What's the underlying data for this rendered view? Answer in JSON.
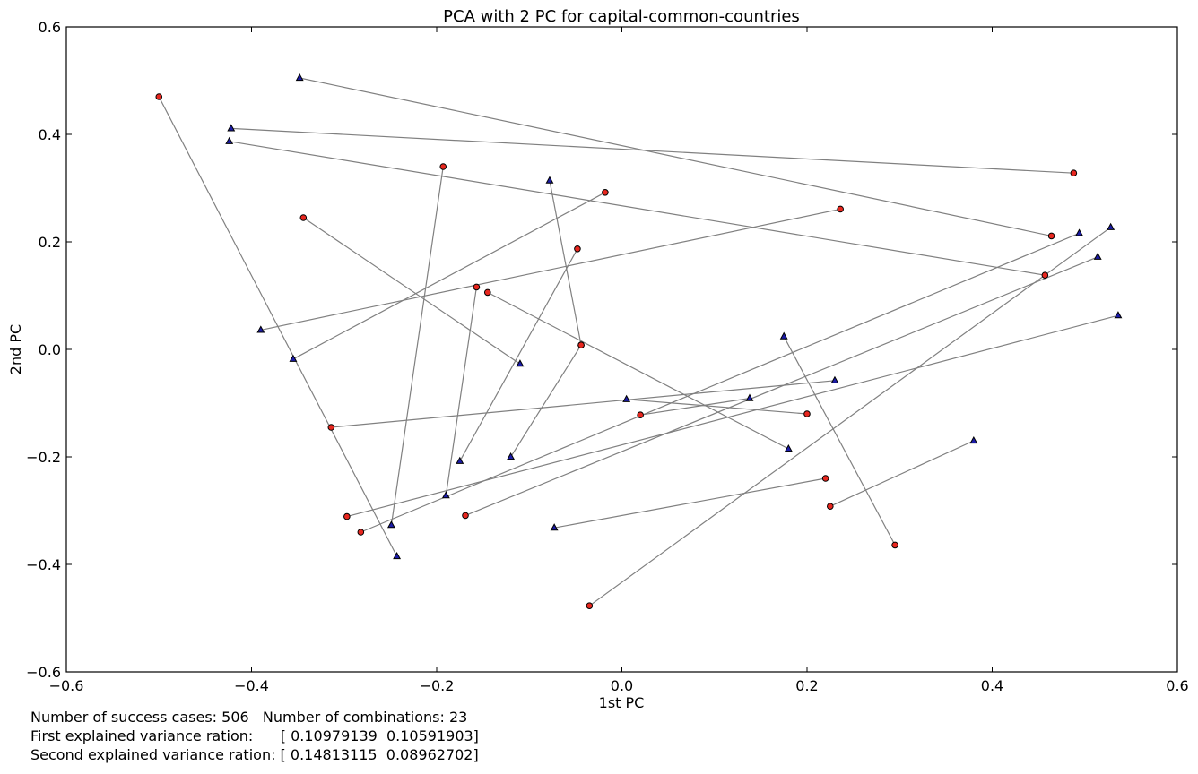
{
  "chart_data": {
    "type": "scatter",
    "title": "PCA with 2 PC for capital-common-countries",
    "xlabel": "1st PC",
    "ylabel": "2nd PC",
    "xlim": [
      -0.6,
      0.6
    ],
    "ylim": [
      -0.6,
      0.6
    ],
    "xticks": [
      -0.6,
      -0.4,
      -0.2,
      0.0,
      0.2,
      0.4,
      0.6
    ],
    "yticks": [
      -0.6,
      -0.4,
      -0.2,
      0.0,
      0.2,
      0.4,
      0.6
    ],
    "xtick_labels": [
      "−0.6",
      "−0.4",
      "−0.2",
      "0.0",
      "0.2",
      "0.4",
      "0.6"
    ],
    "ytick_labels": [
      "−0.6",
      "−0.4",
      "−0.2",
      "0.0",
      "0.2",
      "0.4",
      "0.6"
    ],
    "grid": false,
    "colors": {
      "circle_fill": "#e8271f",
      "triangle_fill": "#1c1ca8",
      "line": "#808080",
      "marker_edge": "#000000"
    },
    "pairs": [
      {
        "circle": [
          -0.5,
          0.47
        ],
        "triangle": [
          -0.243,
          -0.385
        ]
      },
      {
        "circle": [
          0.488,
          0.328
        ],
        "triangle": [
          -0.422,
          0.411
        ]
      },
      {
        "circle": [
          0.464,
          0.211
        ],
        "triangle": [
          -0.348,
          0.505
        ]
      },
      {
        "circle": [
          0.457,
          0.138
        ],
        "triangle": [
          -0.424,
          0.387
        ]
      },
      {
        "circle": [
          -0.193,
          0.34
        ],
        "triangle": [
          -0.249,
          -0.327
        ]
      },
      {
        "circle": [
          -0.018,
          0.292
        ],
        "triangle": [
          -0.355,
          -0.018
        ]
      },
      {
        "circle": [
          0.236,
          0.261
        ],
        "triangle": [
          -0.39,
          0.036
        ]
      },
      {
        "circle": [
          -0.344,
          0.245
        ],
        "triangle": [
          -0.11,
          -0.027
        ]
      },
      {
        "circle": [
          -0.048,
          0.187
        ],
        "triangle": [
          -0.175,
          -0.208
        ]
      },
      {
        "circle": [
          -0.157,
          0.116
        ],
        "triangle": [
          -0.19,
          -0.272
        ]
      },
      {
        "circle": [
          -0.145,
          0.106
        ],
        "triangle": [
          0.18,
          -0.185
        ]
      },
      {
        "circle": [
          -0.044,
          0.008
        ],
        "triangle": [
          -0.078,
          0.314
        ]
      },
      {
        "circle": [
          -0.044,
          0.008
        ],
        "triangle": [
          -0.12,
          -0.2
        ]
      },
      {
        "circle": [
          -0.314,
          -0.145
        ],
        "triangle": [
          0.23,
          -0.058
        ]
      },
      {
        "circle": [
          0.02,
          -0.122
        ],
        "triangle": [
          0.138,
          -0.091
        ]
      },
      {
        "circle": [
          0.2,
          -0.12
        ],
        "triangle": [
          0.005,
          -0.093
        ]
      },
      {
        "circle": [
          -0.297,
          -0.311
        ],
        "triangle": [
          0.536,
          0.063
        ]
      },
      {
        "circle": [
          -0.282,
          -0.34
        ],
        "triangle": [
          0.494,
          0.216
        ]
      },
      {
        "circle": [
          -0.169,
          -0.309
        ],
        "triangle": [
          0.514,
          0.172
        ]
      },
      {
        "circle": [
          0.22,
          -0.24
        ],
        "triangle": [
          -0.073,
          -0.332
        ]
      },
      {
        "circle": [
          0.225,
          -0.292
        ],
        "triangle": [
          0.38,
          -0.17
        ]
      },
      {
        "circle": [
          0.295,
          -0.364
        ],
        "triangle": [
          0.175,
          0.024
        ]
      },
      {
        "circle": [
          -0.035,
          -0.477
        ],
        "triangle": [
          0.528,
          0.227
        ]
      }
    ]
  },
  "footer": {
    "line1": "Number of success cases: 506   Number of combinations: 23",
    "line2": "First explained variance ration:      [ 0.10979139  0.10591903]",
    "line3": "Second explained variance ration: [ 0.14813115  0.08962702]"
  }
}
